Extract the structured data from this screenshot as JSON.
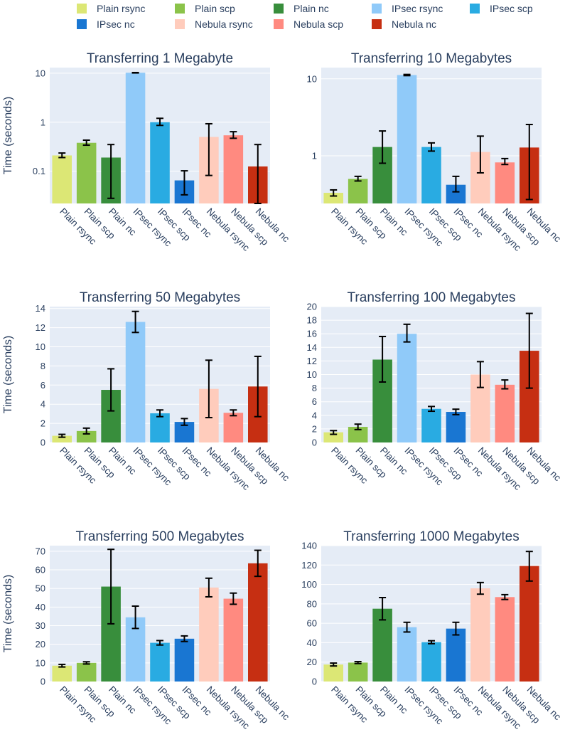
{
  "chart_data": {
    "type": "bar",
    "legend": {
      "placement": "top",
      "entries": [
        {
          "name": "Plain rsync",
          "color": "#dce775"
        },
        {
          "name": "Plain scp",
          "color": "#8bc34a"
        },
        {
          "name": "Plain nc",
          "color": "#388e3c"
        },
        {
          "name": "IPsec rsync",
          "color": "#90caf9"
        },
        {
          "name": "IPsec scp",
          "color": "#29abe2"
        },
        {
          "name": "IPsec nc",
          "color": "#1976d2"
        },
        {
          "name": "Nebula rsync",
          "color": "#ffccbc"
        },
        {
          "name": "Nebula scp",
          "color": "#ff8a80"
        },
        {
          "name": "Nebula nc",
          "color": "#c62f12"
        }
      ]
    },
    "categories": [
      "Plain rsync",
      "Plain scp",
      "Plain nc",
      "IPsec rsync",
      "IPsec scp",
      "IPsec nc",
      "Nebula rsync",
      "Nebula scp",
      "Nebula nc"
    ],
    "ylabel": "Time (seconds)",
    "grid": true,
    "charts": [
      {
        "title": "Transferring 1 Megabyte",
        "yscale": "log",
        "ylim": [
          0.022,
          13
        ],
        "yticks": [
          0.1,
          1,
          10
        ],
        "yticklabels": [
          "0.1",
          "1",
          "10"
        ],
        "show_ylabel": true,
        "values": [
          0.21,
          0.38,
          0.19,
          10.2,
          1.0,
          0.065,
          0.5,
          0.54,
          0.125
        ],
        "err_low": [
          0.19,
          0.34,
          0.028,
          10.1,
          0.86,
          0.033,
          0.082,
          0.47,
          0.02
        ],
        "err_high": [
          0.235,
          0.43,
          0.35,
          10.3,
          1.2,
          0.102,
          0.93,
          0.64,
          0.35
        ]
      },
      {
        "title": "Transferring 10 Megabytes",
        "yscale": "log",
        "ylim": [
          0.24,
          14
        ],
        "yticks": [
          1,
          10
        ],
        "yticklabels": [
          "1",
          "10"
        ],
        "show_ylabel": false,
        "values": [
          0.33,
          0.5,
          1.3,
          11.2,
          1.3,
          0.42,
          1.12,
          0.82,
          1.28
        ],
        "err_low": [
          0.3,
          0.47,
          0.8,
          11.0,
          1.15,
          0.34,
          0.6,
          0.77,
          0.27
        ],
        "err_high": [
          0.36,
          0.54,
          2.1,
          11.4,
          1.47,
          0.54,
          1.8,
          0.92,
          2.55
        ]
      },
      {
        "title": "Transferring 50 Megabytes",
        "yscale": "linear",
        "ylim": [
          0,
          14.2
        ],
        "yticks": [
          0,
          2,
          4,
          6,
          8,
          10,
          12,
          14
        ],
        "yticklabels": [
          "0",
          "2",
          "4",
          "6",
          "8",
          "10",
          "12",
          "14"
        ],
        "show_ylabel": true,
        "values": [
          0.7,
          1.2,
          5.5,
          12.6,
          3.05,
          2.15,
          5.6,
          3.1,
          5.85
        ],
        "err_low": [
          0.55,
          0.9,
          3.3,
          11.5,
          2.7,
          1.8,
          2.6,
          2.8,
          2.7
        ],
        "err_high": [
          0.85,
          1.5,
          7.7,
          13.7,
          3.4,
          2.5,
          8.6,
          3.4,
          9.0
        ]
      },
      {
        "title": "Transferring 100 Megabytes",
        "yscale": "linear",
        "ylim": [
          0,
          20
        ],
        "yticks": [
          0,
          2,
          4,
          6,
          8,
          10,
          12,
          14,
          16,
          18,
          20
        ],
        "yticklabels": [
          "0",
          "2",
          "4",
          "6",
          "8",
          "10",
          "12",
          "14",
          "16",
          "18",
          "20"
        ],
        "show_ylabel": false,
        "values": [
          1.5,
          2.3,
          12.2,
          16.0,
          4.95,
          4.5,
          10.0,
          8.5,
          13.5
        ],
        "err_low": [
          1.2,
          1.9,
          8.9,
          14.8,
          4.6,
          4.1,
          8.1,
          7.9,
          8.0
        ],
        "err_high": [
          1.75,
          2.7,
          15.6,
          17.4,
          5.3,
          4.9,
          11.9,
          9.2,
          19.0
        ]
      },
      {
        "title": "Transferring 500 Megabytes",
        "yscale": "linear",
        "ylim": [
          0,
          73
        ],
        "yticks": [
          0,
          10,
          20,
          30,
          40,
          50,
          60,
          70
        ],
        "yticklabels": [
          "0",
          "10",
          "20",
          "30",
          "40",
          "50",
          "60",
          "70"
        ],
        "show_ylabel": true,
        "values": [
          8.5,
          10.0,
          51.0,
          34.5,
          20.8,
          23.0,
          50.5,
          44.5,
          63.5
        ],
        "err_low": [
          7.8,
          9.4,
          31.0,
          28.5,
          19.6,
          21.5,
          45.5,
          41.5,
          56.5
        ],
        "err_high": [
          9.2,
          10.6,
          71.0,
          40.5,
          22.0,
          24.5,
          55.5,
          47.5,
          70.5
        ]
      },
      {
        "title": "Transferring 1000 Megabytes",
        "yscale": "linear",
        "ylim": [
          0,
          140
        ],
        "yticks": [
          0,
          20,
          40,
          60,
          80,
          100,
          120,
          140
        ],
        "yticklabels": [
          "0",
          "20",
          "40",
          "60",
          "80",
          "100",
          "120",
          "140"
        ],
        "show_ylabel": false,
        "values": [
          17.5,
          19.5,
          75.0,
          56.0,
          40.5,
          54.5,
          96.0,
          87.0,
          119.0
        ],
        "err_low": [
          16.0,
          18.5,
          63.5,
          51.0,
          39.0,
          48.0,
          90.0,
          84.5,
          103.5
        ],
        "err_high": [
          19.0,
          20.5,
          86.5,
          61.0,
          42.0,
          61.0,
          102.0,
          89.5,
          134.0
        ]
      }
    ]
  }
}
